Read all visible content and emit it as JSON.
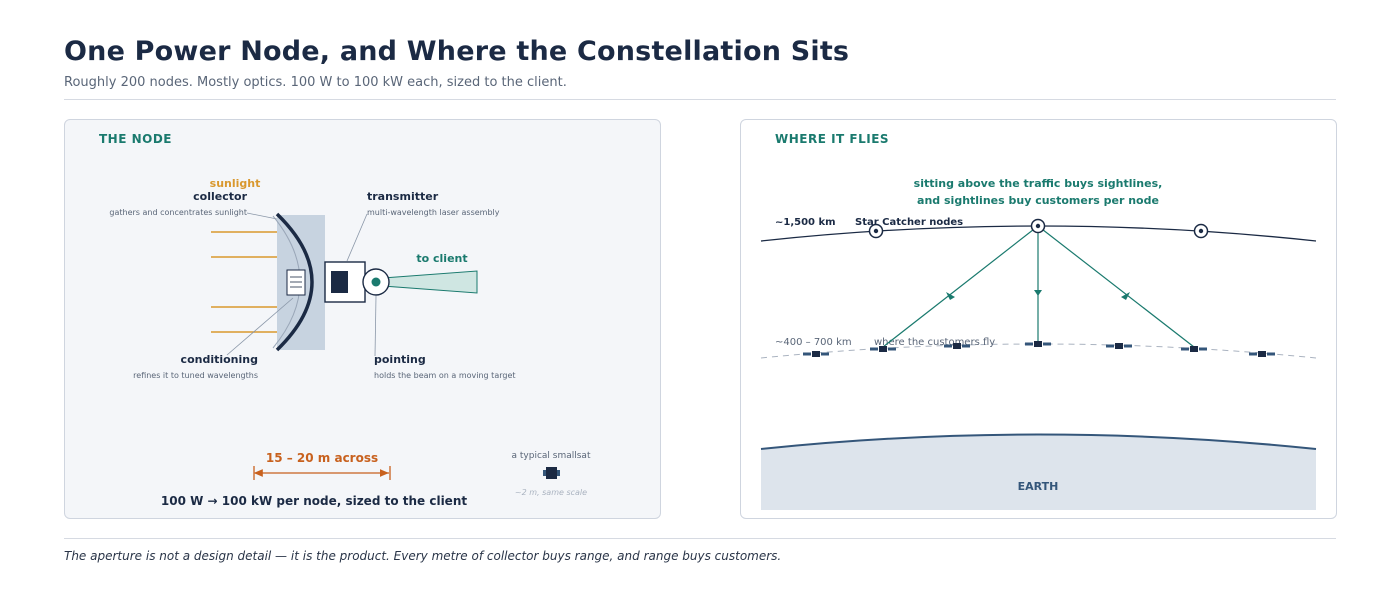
{
  "header": {
    "title": "One Power Node, and Where the Constellation Sits",
    "subtitle": "Roughly 200 nodes. Mostly optics. 100 W to 100 kW each, sized to the client."
  },
  "node_panel": {
    "heading": "THE NODE",
    "sunlight_label": "sunlight",
    "collector_title": "collector",
    "collector_desc": "gathers and concentrates sunlight",
    "transmitter_title": "transmitter",
    "transmitter_desc": "multi-wavelength laser assembly",
    "to_client_label": "to client",
    "conditioning_title": "conditioning",
    "conditioning_desc": "refines it to tuned wavelengths",
    "pointing_title": "pointing",
    "pointing_desc": "holds the beam on a moving target",
    "aperture_label": "15 – 20 m across",
    "power_label": "100 W  →  100 kW per node, sized to the client",
    "smallsat_label": "a typical smallsat",
    "smallsat_scale": "~2 m, same scale"
  },
  "flies_panel": {
    "heading": "WHERE IT FLIES",
    "callout_line1": "sitting above the traffic buys sightlines,",
    "callout_line2": "and sightlines buy customers per node",
    "upper_altitude": "~1,500 km",
    "upper_label": "Star Catcher nodes",
    "lower_altitude": "~400 – 700 km",
    "lower_label": "where the customers fly",
    "earth_label": "EARTH"
  },
  "footer": {
    "caption": "The aperture is not a design detail — it is the product. Every metre of collector buys range, and range buys customers."
  },
  "colors": {
    "navy": "#1b2a44",
    "teal": "#1a7a6e",
    "sun": "#d9982e",
    "orange": "#c8611e",
    "earth_fill": "#dde4ec",
    "earth_line": "#34567a"
  }
}
